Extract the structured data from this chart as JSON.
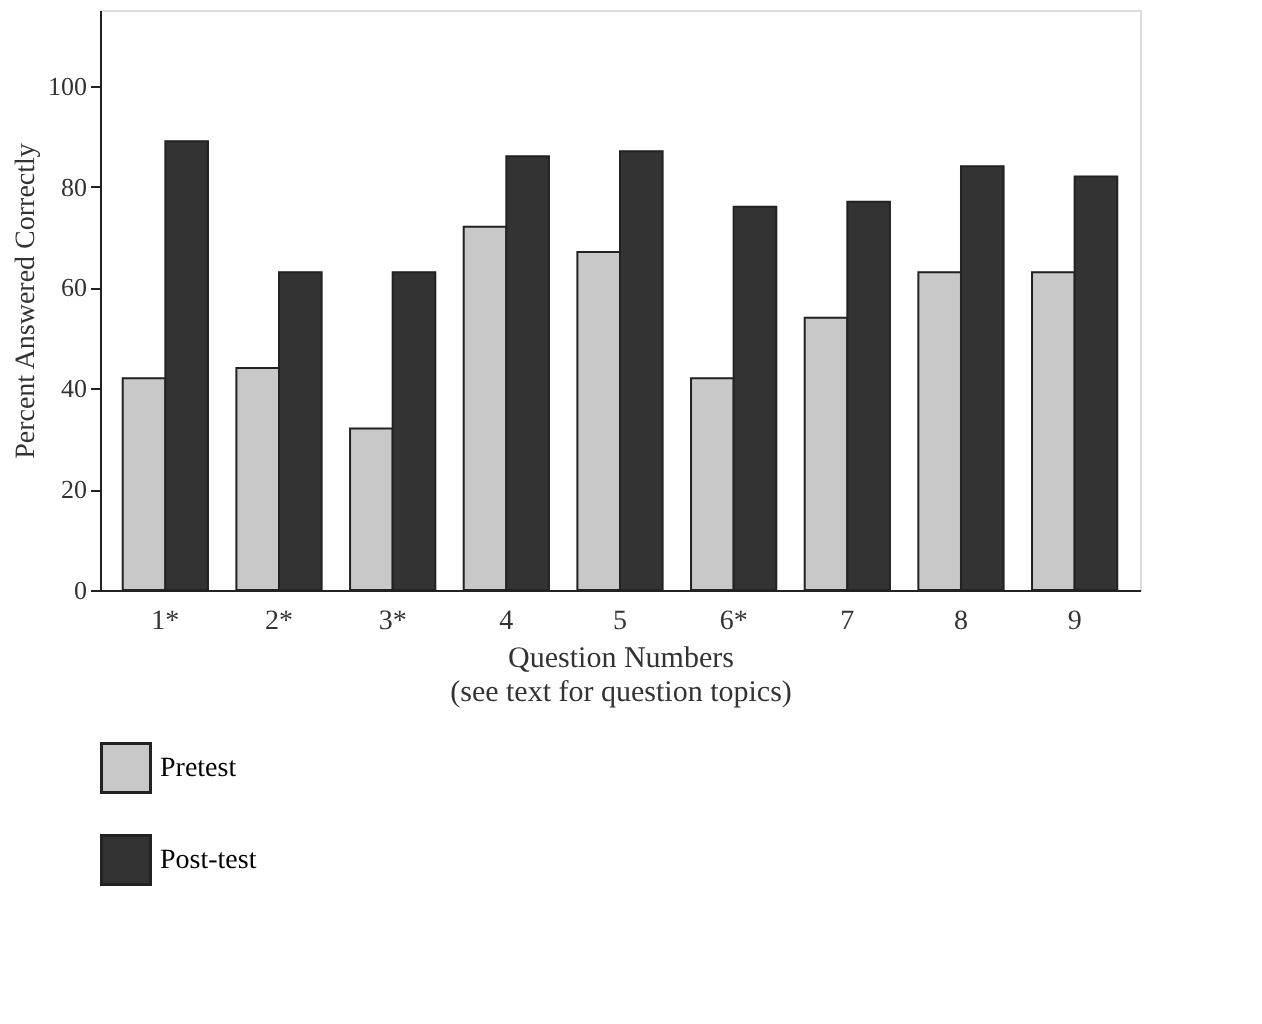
{
  "chart_data": {
    "type": "bar",
    "categories": [
      "1*",
      "2*",
      "3*",
      "4",
      "5",
      "6*",
      "7",
      "8",
      "9"
    ],
    "series": [
      {
        "name": "Pretest",
        "color": "#c8c8c8",
        "values": [
          42,
          44,
          32,
          72,
          67,
          42,
          54,
          63,
          63
        ]
      },
      {
        "name": "Post-test",
        "color": "#333333",
        "values": [
          89,
          63,
          63,
          86,
          87,
          76,
          77,
          84,
          82
        ]
      }
    ],
    "xlabel": "Question Numbers\n(see text for question topics)",
    "ylabel": "Percent Answered Correctly",
    "ylim": [
      0,
      115
    ],
    "yticks": [
      0,
      20,
      40,
      60,
      80,
      100
    ],
    "grid": false,
    "legend": "bottom left"
  }
}
